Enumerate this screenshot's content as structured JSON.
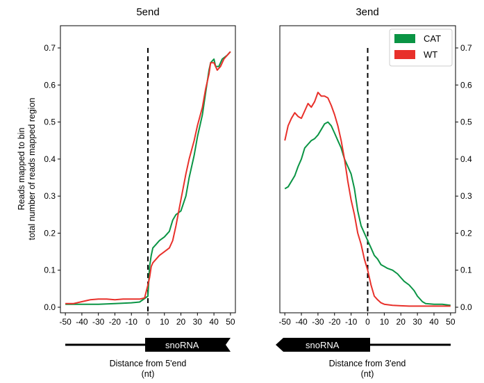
{
  "chart_data": [
    {
      "type": "line",
      "title": "5end",
      "ylabel": [
        "Reads mapped to bin",
        "total number of reads mapped region"
      ],
      "xlabel": [
        "Distance from 5'end",
        "(nt)"
      ],
      "xlim": [
        -53,
        53
      ],
      "ylim": [
        -0.015,
        0.76
      ],
      "xticks": [
        -50,
        -40,
        -30,
        -20,
        -10,
        0,
        10,
        20,
        30,
        40,
        50
      ],
      "xtick_labels": [
        "-50",
        "-40",
        "-30",
        "-20",
        "-10",
        "0",
        "10",
        "20",
        "30",
        "40",
        "50"
      ],
      "yticks": [
        0.0,
        0.1,
        0.2,
        0.3,
        0.4,
        0.5,
        0.6,
        0.7
      ],
      "ytick_labels": [
        "0.0",
        "0.1",
        "0.2",
        "0.3",
        "0.4",
        "0.5",
        "0.6",
        "0.7"
      ],
      "ytick_side": "left",
      "vline": {
        "x": 0,
        "y_top": 0.7,
        "style": "dashed"
      },
      "gene_label": "snoRNA",
      "gene_direction": "right",
      "series": [
        {
          "name": "CAT",
          "color": "#0a9444",
          "x": [
            -50,
            -40,
            -30,
            -20,
            -10,
            -5,
            0,
            1,
            2,
            3,
            5,
            7,
            10,
            13,
            15,
            17,
            20,
            23,
            25,
            28,
            30,
            33,
            35,
            37,
            38,
            40,
            41,
            43,
            45,
            48,
            50
          ],
          "y": [
            0.008,
            0.008,
            0.008,
            0.01,
            0.012,
            0.014,
            0.03,
            0.11,
            0.14,
            0.16,
            0.17,
            0.18,
            0.19,
            0.205,
            0.235,
            0.25,
            0.26,
            0.3,
            0.35,
            0.41,
            0.46,
            0.52,
            0.58,
            0.64,
            0.66,
            0.67,
            0.65,
            0.65,
            0.67,
            0.68,
            0.69
          ]
        },
        {
          "name": "WT",
          "color": "#e8302a",
          "x": [
            -50,
            -45,
            -40,
            -35,
            -30,
            -25,
            -20,
            -15,
            -10,
            -5,
            -2,
            0,
            1,
            2,
            3,
            5,
            7,
            10,
            13,
            15,
            17,
            20,
            23,
            25,
            28,
            30,
            33,
            35,
            37,
            38,
            40,
            42,
            44,
            46,
            48,
            50
          ],
          "y": [
            0.01,
            0.01,
            0.015,
            0.02,
            0.022,
            0.022,
            0.02,
            0.022,
            0.022,
            0.022,
            0.025,
            0.06,
            0.08,
            0.11,
            0.12,
            0.13,
            0.14,
            0.15,
            0.16,
            0.18,
            0.22,
            0.29,
            0.36,
            0.4,
            0.45,
            0.49,
            0.54,
            0.59,
            0.63,
            0.66,
            0.66,
            0.64,
            0.65,
            0.67,
            0.68,
            0.69
          ]
        }
      ]
    },
    {
      "type": "line",
      "title": "3end",
      "xlabel": [
        "Distance from 3'end",
        "(nt)"
      ],
      "xlim": [
        -53,
        53
      ],
      "ylim": [
        -0.015,
        0.76
      ],
      "xticks": [
        -50,
        -40,
        -30,
        -20,
        -10,
        0,
        10,
        20,
        30,
        40,
        50
      ],
      "xtick_labels": [
        "-50",
        "-40",
        "-30",
        "-20",
        "-10",
        "0",
        "10",
        "20",
        "30",
        "40",
        "50"
      ],
      "yticks": [
        0.0,
        0.1,
        0.2,
        0.3,
        0.4,
        0.5,
        0.6,
        0.7
      ],
      "ytick_labels": [
        "0.0",
        "0.1",
        "0.2",
        "0.3",
        "0.4",
        "0.5",
        "0.6",
        "0.7"
      ],
      "ytick_side": "right",
      "vline": {
        "x": 0,
        "y_top": 0.7,
        "style": "dashed"
      },
      "gene_label": "snoRNA",
      "gene_direction": "left",
      "legend": {
        "position": "top-right",
        "entries": [
          "CAT",
          "WT"
        ]
      },
      "series": [
        {
          "name": "CAT",
          "color": "#0a9444",
          "x": [
            -50,
            -48,
            -46,
            -44,
            -42,
            -40,
            -38,
            -36,
            -34,
            -32,
            -30,
            -28,
            -26,
            -24,
            -22,
            -20,
            -18,
            -16,
            -14,
            -12,
            -10,
            -8,
            -6,
            -4,
            -2,
            0,
            2,
            4,
            6,
            8,
            10,
            12,
            15,
            18,
            20,
            22,
            25,
            28,
            30,
            33,
            35,
            40,
            45,
            50
          ],
          "y": [
            0.32,
            0.325,
            0.34,
            0.355,
            0.38,
            0.4,
            0.43,
            0.44,
            0.45,
            0.455,
            0.465,
            0.48,
            0.495,
            0.5,
            0.49,
            0.47,
            0.45,
            0.43,
            0.4,
            0.38,
            0.36,
            0.32,
            0.26,
            0.22,
            0.2,
            0.18,
            0.16,
            0.14,
            0.13,
            0.115,
            0.11,
            0.105,
            0.1,
            0.09,
            0.08,
            0.07,
            0.06,
            0.045,
            0.03,
            0.015,
            0.01,
            0.008,
            0.008,
            0.005
          ]
        },
        {
          "name": "WT",
          "color": "#e8302a",
          "x": [
            -50,
            -48,
            -46,
            -44,
            -42,
            -40,
            -38,
            -36,
            -34,
            -32,
            -30,
            -28,
            -26,
            -24,
            -22,
            -20,
            -18,
            -16,
            -14,
            -12,
            -10,
            -8,
            -6,
            -4,
            -2,
            0,
            2,
            4,
            6,
            8,
            10,
            15,
            20,
            25,
            30,
            35,
            40,
            45,
            50
          ],
          "y": [
            0.45,
            0.49,
            0.51,
            0.525,
            0.515,
            0.51,
            0.53,
            0.55,
            0.54,
            0.555,
            0.58,
            0.57,
            0.57,
            0.565,
            0.545,
            0.52,
            0.49,
            0.45,
            0.4,
            0.34,
            0.29,
            0.25,
            0.2,
            0.17,
            0.13,
            0.1,
            0.06,
            0.03,
            0.02,
            0.012,
            0.008,
            0.005,
            0.004,
            0.003,
            0.003,
            0.003,
            0.003,
            0.003,
            0.003
          ]
        }
      ]
    }
  ]
}
